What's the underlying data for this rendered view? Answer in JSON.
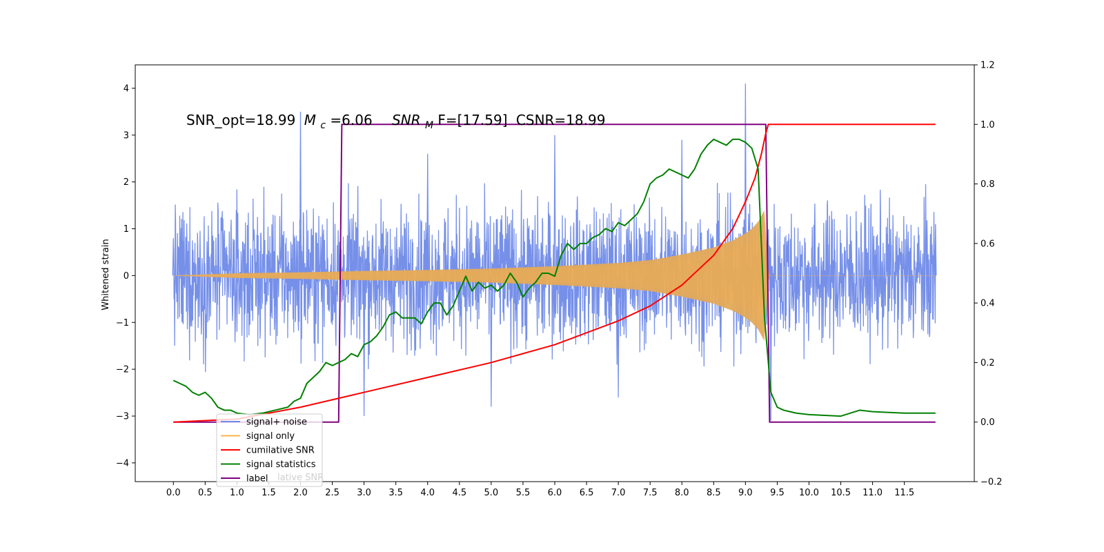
{
  "chart_data": {
    "type": "line",
    "title": "",
    "annotation": {
      "snr_opt": "SNR_opt=18.99",
      "mc_symbol": "M",
      "mc_sub": "c",
      "mc_value": "=6.06",
      "snrmf_symbol": "SNR",
      "snrmf_sub": "M",
      "snrmf_value": "F=[17.59]",
      "csnr": "CSNR=18.99"
    },
    "xlabel": "",
    "ylabel": "Whitened strain",
    "y2label": "",
    "xlim": [
      -0.6,
      12.6
    ],
    "ylim": [
      -4.4,
      4.5
    ],
    "y2lim": [
      -0.2,
      1.2
    ],
    "xticks": [
      "0.0",
      "0.5",
      "1.0",
      "1.5",
      "2.0",
      "2.5",
      "3.0",
      "3.5",
      "4.0",
      "4.5",
      "5.0",
      "5.5",
      "6.0",
      "6.5",
      "7.0",
      "7.5",
      "8.0",
      "8.5",
      "9.0",
      "9.5",
      "10.0",
      "10.5",
      "11.0",
      "11.5"
    ],
    "yticks": [
      "4",
      "3",
      "2",
      "1",
      "0",
      "−1",
      "−2",
      "−3",
      "−4"
    ],
    "y2ticks": [
      "1.2",
      "1.0",
      "0.8",
      "0.6",
      "0.4",
      "0.2",
      "0.0",
      "−0.2"
    ],
    "grid": false,
    "legend_position": "lower-left",
    "legend": [
      {
        "label": "signal+ noise",
        "color": "#6f8ae8"
      },
      {
        "label": "signal only",
        "color": "#ffb347"
      },
      {
        "label": "cumilative SNR",
        "color": "#ff0000"
      },
      {
        "label": "signal statistics",
        "color": "#008000"
      },
      {
        "label": "label",
        "color": "#800080"
      }
    ],
    "legend_ghost_text": "lative SNR",
    "series": [
      {
        "name": "signal+ noise",
        "axis": "left",
        "description_range": [
          -3.7,
          4.1
        ],
        "x_range": [
          0.0,
          11.99
        ],
        "points": [
          [
            0.0,
            0.8
          ],
          [
            1.0,
            -1.2
          ],
          [
            2.0,
            3.5
          ],
          [
            3.0,
            -3.0
          ],
          [
            4.0,
            2.6
          ],
          [
            5.0,
            -2.8
          ],
          [
            6.0,
            3.0
          ],
          [
            7.0,
            -2.6
          ],
          [
            8.0,
            2.9
          ],
          [
            9.0,
            4.1
          ],
          [
            9.4,
            -3.1
          ],
          [
            11.99,
            1.1
          ]
        ]
      },
      {
        "name": "signal only",
        "axis": "left",
        "envelope": [
          [
            0.0,
            0.0
          ],
          [
            1.0,
            0.05
          ],
          [
            2.0,
            0.07
          ],
          [
            3.0,
            0.1
          ],
          [
            4.0,
            0.12
          ],
          [
            5.0,
            0.15
          ],
          [
            6.0,
            0.2
          ],
          [
            7.0,
            0.27
          ],
          [
            7.5,
            0.33
          ],
          [
            8.0,
            0.45
          ],
          [
            8.5,
            0.6
          ],
          [
            8.8,
            0.75
          ],
          [
            9.0,
            0.9
          ],
          [
            9.1,
            1.0
          ],
          [
            9.2,
            1.15
          ],
          [
            9.3,
            1.4
          ],
          [
            9.36,
            0.0
          ],
          [
            11.99,
            0.0
          ]
        ]
      },
      {
        "name": "cumilative SNR",
        "axis": "right",
        "points": [
          [
            0.0,
            0.0
          ],
          [
            1.0,
            0.01
          ],
          [
            2.0,
            0.05
          ],
          [
            2.5,
            0.075
          ],
          [
            3.0,
            0.1
          ],
          [
            4.0,
            0.15
          ],
          [
            5.0,
            0.2
          ],
          [
            6.0,
            0.26
          ],
          [
            7.0,
            0.34
          ],
          [
            7.5,
            0.39
          ],
          [
            8.0,
            0.46
          ],
          [
            8.5,
            0.56
          ],
          [
            8.8,
            0.65
          ],
          [
            9.0,
            0.74
          ],
          [
            9.15,
            0.82
          ],
          [
            9.25,
            0.9
          ],
          [
            9.32,
            0.97
          ],
          [
            9.36,
            1.0
          ],
          [
            11.99,
            1.0
          ]
        ]
      },
      {
        "name": "signal statistics",
        "axis": "right",
        "points": [
          [
            0.0,
            0.14
          ],
          [
            0.1,
            0.13
          ],
          [
            0.2,
            0.12
          ],
          [
            0.3,
            0.1
          ],
          [
            0.4,
            0.09
          ],
          [
            0.5,
            0.1
          ],
          [
            0.6,
            0.08
          ],
          [
            0.7,
            0.05
          ],
          [
            0.8,
            0.04
          ],
          [
            0.9,
            0.04
          ],
          [
            1.0,
            0.03
          ],
          [
            1.2,
            0.025
          ],
          [
            1.4,
            0.03
          ],
          [
            1.6,
            0.04
          ],
          [
            1.8,
            0.05
          ],
          [
            1.9,
            0.07
          ],
          [
            2.0,
            0.08
          ],
          [
            2.1,
            0.13
          ],
          [
            2.2,
            0.15
          ],
          [
            2.3,
            0.17
          ],
          [
            2.4,
            0.2
          ],
          [
            2.5,
            0.19
          ],
          [
            2.6,
            0.2
          ],
          [
            2.7,
            0.21
          ],
          [
            2.8,
            0.23
          ],
          [
            2.9,
            0.22
          ],
          [
            3.0,
            0.26
          ],
          [
            3.1,
            0.27
          ],
          [
            3.2,
            0.29
          ],
          [
            3.3,
            0.32
          ],
          [
            3.4,
            0.36
          ],
          [
            3.5,
            0.37
          ],
          [
            3.6,
            0.35
          ],
          [
            3.7,
            0.35
          ],
          [
            3.8,
            0.35
          ],
          [
            3.9,
            0.33
          ],
          [
            4.0,
            0.37
          ],
          [
            4.1,
            0.4
          ],
          [
            4.2,
            0.4
          ],
          [
            4.3,
            0.36
          ],
          [
            4.4,
            0.39
          ],
          [
            4.5,
            0.44
          ],
          [
            4.6,
            0.49
          ],
          [
            4.7,
            0.44
          ],
          [
            4.8,
            0.47
          ],
          [
            4.9,
            0.45
          ],
          [
            5.0,
            0.46
          ],
          [
            5.1,
            0.44
          ],
          [
            5.2,
            0.46
          ],
          [
            5.3,
            0.5
          ],
          [
            5.4,
            0.47
          ],
          [
            5.5,
            0.42
          ],
          [
            5.6,
            0.45
          ],
          [
            5.7,
            0.47
          ],
          [
            5.8,
            0.5
          ],
          [
            5.9,
            0.5
          ],
          [
            6.0,
            0.49
          ],
          [
            6.1,
            0.56
          ],
          [
            6.2,
            0.6
          ],
          [
            6.3,
            0.58
          ],
          [
            6.4,
            0.6
          ],
          [
            6.5,
            0.6
          ],
          [
            6.6,
            0.62
          ],
          [
            6.7,
            0.63
          ],
          [
            6.8,
            0.65
          ],
          [
            6.9,
            0.64
          ],
          [
            7.0,
            0.67
          ],
          [
            7.1,
            0.66
          ],
          [
            7.2,
            0.68
          ],
          [
            7.3,
            0.7
          ],
          [
            7.4,
            0.74
          ],
          [
            7.5,
            0.8
          ],
          [
            7.6,
            0.82
          ],
          [
            7.7,
            0.83
          ],
          [
            7.8,
            0.85
          ],
          [
            7.9,
            0.84
          ],
          [
            8.0,
            0.83
          ],
          [
            8.1,
            0.82
          ],
          [
            8.2,
            0.85
          ],
          [
            8.3,
            0.9
          ],
          [
            8.4,
            0.93
          ],
          [
            8.5,
            0.95
          ],
          [
            8.6,
            0.94
          ],
          [
            8.7,
            0.93
          ],
          [
            8.8,
            0.95
          ],
          [
            8.9,
            0.95
          ],
          [
            9.0,
            0.94
          ],
          [
            9.1,
            0.92
          ],
          [
            9.2,
            0.85
          ],
          [
            9.25,
            0.6
          ],
          [
            9.3,
            0.35
          ],
          [
            9.4,
            0.1
          ],
          [
            9.5,
            0.05
          ],
          [
            9.6,
            0.04
          ],
          [
            9.8,
            0.03
          ],
          [
            10.0,
            0.025
          ],
          [
            10.5,
            0.02
          ],
          [
            10.8,
            0.04
          ],
          [
            11.0,
            0.035
          ],
          [
            11.5,
            0.03
          ],
          [
            11.99,
            0.03
          ]
        ]
      },
      {
        "name": "label",
        "axis": "right",
        "points": [
          [
            0.0,
            0.0
          ],
          [
            2.6,
            0.0
          ],
          [
            2.65,
            1.0
          ],
          [
            9.32,
            1.0
          ],
          [
            9.38,
            0.0
          ],
          [
            11.99,
            0.0
          ]
        ]
      }
    ]
  }
}
